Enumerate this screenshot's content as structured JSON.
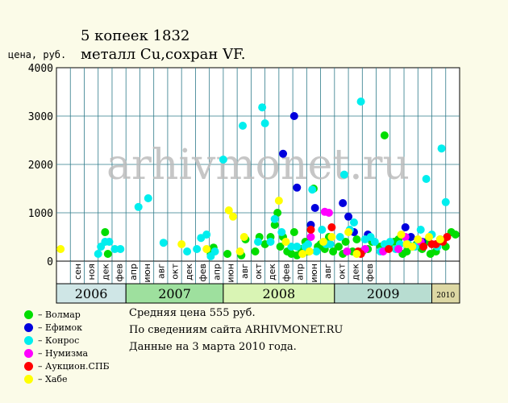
{
  "title": "5 копеек 1832",
  "subtitle": "металл Cu,сохран VF.",
  "watermark": "arhivmonet.ru",
  "avg_text": "Средняя цена 555 руб.",
  "source_text": "По сведениям сайта ARHIVMONET.RU",
  "date_text": "Данные на 3 марта 2010 года.",
  "legend": [
    {
      "name": "– Волмар",
      "color": "#00dd00"
    },
    {
      "name": "– Ефимок",
      "color": "#0000dd"
    },
    {
      "name": "– Конрос",
      "color": "#00eeee"
    },
    {
      "name": "– Нумизма",
      "color": "#ff00ff"
    },
    {
      "name": "– Аукцион.СПБ",
      "color": "#ff0000"
    },
    {
      "name": "– Хабе",
      "color": "#ffff00"
    }
  ],
  "chart_data": {
    "type": "scatter",
    "title": "5 копеек 1832",
    "ylabel": "цена, руб.",
    "ylim": [
      0,
      4000
    ],
    "yticks": [
      "0",
      "1000",
      "2000",
      "3000",
      "4000"
    ],
    "xticks": [
      "сен",
      "ноя",
      "дек",
      "фев",
      "апр",
      "июн",
      "авг",
      "окт",
      "дек",
      "фев",
      "апр",
      "июн",
      "авг",
      "окт",
      "дек",
      "фев",
      "апр",
      "июн",
      "авг",
      "окт",
      "дек",
      "фев"
    ],
    "years": [
      {
        "label": "2006",
        "color": "#cfe6e6"
      },
      {
        "label": "2007",
        "color": "#9ee09e"
      },
      {
        "label": "2008",
        "color": "#d9f4b4"
      },
      {
        "label": "2009",
        "color": "#b8ddd1"
      },
      {
        "label": "2010",
        "color": "#ddd8a4"
      }
    ],
    "grid": true,
    "series": [
      {
        "name": "Волмар",
        "color": "#00dd00",
        "points": [
          [
            3.5,
            600
          ],
          [
            3.7,
            150
          ],
          [
            11.1,
            150
          ],
          [
            11.3,
            280
          ],
          [
            12.3,
            150
          ],
          [
            13.3,
            120
          ],
          [
            13.6,
            450
          ],
          [
            14.3,
            200
          ],
          [
            14.6,
            500
          ],
          [
            15.0,
            350
          ],
          [
            15.4,
            500
          ],
          [
            15.7,
            750
          ],
          [
            15.9,
            1000
          ],
          [
            16.1,
            300
          ],
          [
            16.3,
            500
          ],
          [
            16.6,
            200
          ],
          [
            16.9,
            150
          ],
          [
            17.1,
            600
          ],
          [
            17.3,
            120
          ],
          [
            17.6,
            250
          ],
          [
            17.9,
            400
          ],
          [
            18.1,
            200
          ],
          [
            18.5,
            1500
          ],
          [
            18.8,
            300
          ],
          [
            19.0,
            350
          ],
          [
            19.3,
            250
          ],
          [
            19.6,
            500
          ],
          [
            19.9,
            200
          ],
          [
            20.3,
            300
          ],
          [
            20.6,
            150
          ],
          [
            20.8,
            400
          ],
          [
            21.3,
            200
          ],
          [
            21.6,
            450
          ],
          [
            22.0,
            200
          ],
          [
            22.4,
            250
          ],
          [
            22.7,
            400
          ],
          [
            23.3,
            300
          ],
          [
            23.6,
            2600
          ],
          [
            23.9,
            300
          ],
          [
            24.3,
            400
          ],
          [
            24.6,
            450
          ],
          [
            24.9,
            150
          ],
          [
            25.2,
            200
          ],
          [
            25.6,
            300
          ],
          [
            25.9,
            350
          ],
          [
            26.3,
            250
          ],
          [
            26.6,
            400
          ],
          [
            26.9,
            150
          ],
          [
            27.3,
            200
          ],
          [
            27.6,
            450
          ],
          [
            28.0,
            300
          ],
          [
            28.4,
            600
          ],
          [
            28.7,
            550
          ]
        ]
      },
      {
        "name": "Ефимок",
        "color": "#0000dd",
        "points": [
          [
            16.3,
            2220
          ],
          [
            17.1,
            3000
          ],
          [
            17.3,
            1520
          ],
          [
            18.3,
            750
          ],
          [
            18.6,
            1100
          ],
          [
            20.6,
            1200
          ],
          [
            21.0,
            920
          ],
          [
            21.4,
            600
          ],
          [
            22.4,
            550
          ],
          [
            25.1,
            700
          ],
          [
            25.5,
            500
          ],
          [
            26.3,
            400
          ]
        ]
      },
      {
        "name": "Конрос",
        "color": "#00eeee",
        "points": [
          [
            3.0,
            150
          ],
          [
            3.2,
            300
          ],
          [
            3.5,
            400
          ],
          [
            3.8,
            400
          ],
          [
            4.2,
            250
          ],
          [
            4.6,
            250
          ],
          [
            5.9,
            1120
          ],
          [
            6.6,
            1300
          ],
          [
            7.7,
            380
          ],
          [
            9.4,
            200
          ],
          [
            10.1,
            250
          ],
          [
            10.4,
            480
          ],
          [
            10.8,
            550
          ],
          [
            11.1,
            100
          ],
          [
            11.4,
            200
          ],
          [
            12.0,
            2100
          ],
          [
            13.4,
            2800
          ],
          [
            14.5,
            400
          ],
          [
            14.8,
            3180
          ],
          [
            15.0,
            2850
          ],
          [
            15.4,
            400
          ],
          [
            15.7,
            870
          ],
          [
            16.2,
            600
          ],
          [
            16.9,
            300
          ],
          [
            17.3,
            300
          ],
          [
            17.9,
            300
          ],
          [
            18.1,
            350
          ],
          [
            18.4,
            1480
          ],
          [
            18.7,
            200
          ],
          [
            19.1,
            650
          ],
          [
            19.4,
            350
          ],
          [
            19.7,
            350
          ],
          [
            20.4,
            500
          ],
          [
            20.7,
            1790
          ],
          [
            21.1,
            650
          ],
          [
            21.4,
            800
          ],
          [
            21.9,
            3300
          ],
          [
            22.2,
            450
          ],
          [
            22.6,
            500
          ],
          [
            22.9,
            400
          ],
          [
            23.3,
            200
          ],
          [
            23.6,
            350
          ],
          [
            24.0,
            400
          ],
          [
            24.4,
            250
          ],
          [
            24.7,
            350
          ],
          [
            25.3,
            350
          ],
          [
            25.8,
            300
          ],
          [
            26.2,
            650
          ],
          [
            26.6,
            1700
          ],
          [
            27.0,
            550
          ],
          [
            27.4,
            300
          ],
          [
            27.7,
            2330
          ],
          [
            28.0,
            1220
          ]
        ]
      },
      {
        "name": "Нумизма",
        "color": "#ff00ff",
        "points": [
          [
            18.3,
            500
          ],
          [
            19.3,
            1020
          ],
          [
            19.6,
            1000
          ],
          [
            20.9,
            200
          ],
          [
            22.2,
            250
          ],
          [
            23.5,
            200
          ],
          [
            24.6,
            250
          ],
          [
            25.1,
            500
          ],
          [
            26.2,
            400
          ]
        ]
      },
      {
        "name": "Аукцион.СПБ",
        "color": "#ff0000",
        "points": [
          [
            18.3,
            650
          ],
          [
            19.8,
            700
          ],
          [
            21.7,
            200
          ],
          [
            21.9,
            150
          ],
          [
            23.9,
            250
          ],
          [
            26.4,
            300
          ],
          [
            27.0,
            350
          ],
          [
            27.3,
            350
          ],
          [
            27.8,
            400
          ],
          [
            28.1,
            500
          ]
        ]
      },
      {
        "name": "Хабе",
        "color": "#ffff00",
        "points": [
          [
            0.3,
            250
          ],
          [
            9.0,
            350
          ],
          [
            10.8,
            250
          ],
          [
            12.4,
            1050
          ],
          [
            12.7,
            920
          ],
          [
            13.2,
            200
          ],
          [
            13.5,
            500
          ],
          [
            16.0,
            1250
          ],
          [
            16.5,
            400
          ],
          [
            17.7,
            150
          ],
          [
            18.2,
            200
          ],
          [
            19.2,
            400
          ],
          [
            19.8,
            500
          ],
          [
            21.0,
            600
          ],
          [
            21.6,
            150
          ],
          [
            24.8,
            550
          ],
          [
            25.2,
            350
          ],
          [
            25.6,
            300
          ],
          [
            26.0,
            450
          ],
          [
            26.8,
            500
          ],
          [
            27.6,
            450
          ]
        ]
      }
    ]
  }
}
